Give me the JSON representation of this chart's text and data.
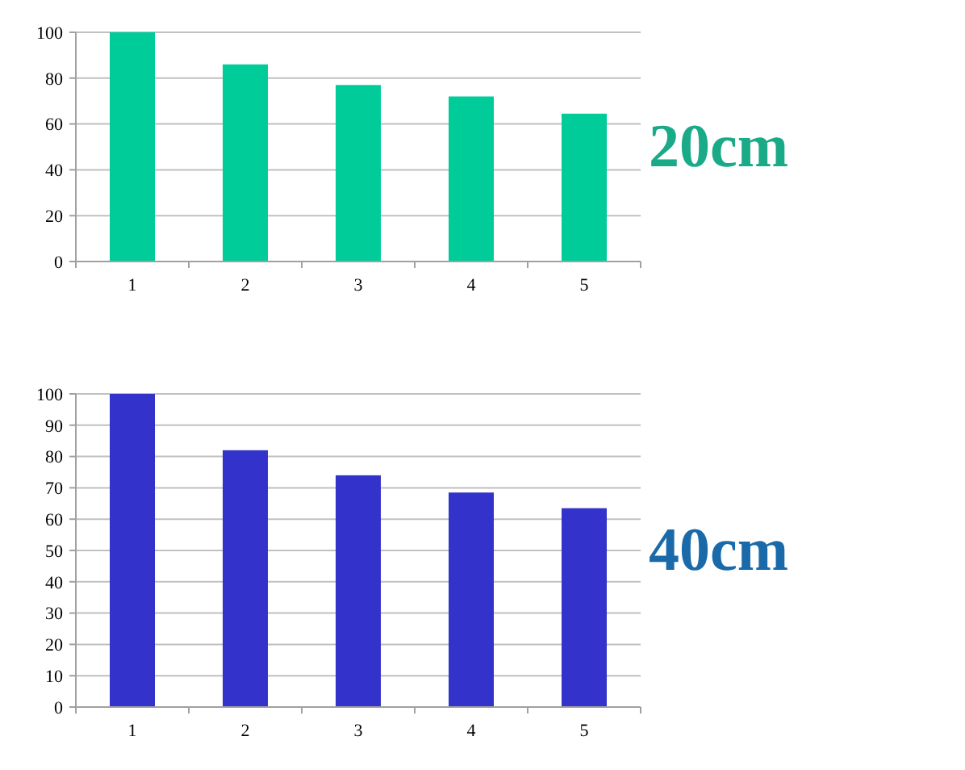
{
  "chart_data": [
    {
      "type": "bar",
      "title": "20cm",
      "categories": [
        "1",
        "2",
        "3",
        "4",
        "5"
      ],
      "values": [
        100,
        86,
        77,
        72,
        64.5
      ],
      "color": "#00cc99",
      "ylim": [
        0,
        100
      ],
      "yticks": [
        0,
        20,
        40,
        60,
        80,
        100
      ],
      "grid": "y"
    },
    {
      "type": "bar",
      "title": "40cm",
      "categories": [
        "1",
        "2",
        "3",
        "4",
        "5"
      ],
      "values": [
        100,
        82,
        74,
        68.5,
        63.5
      ],
      "color": "#3333cc",
      "ylim": [
        0,
        100
      ],
      "yticks": [
        0,
        10,
        20,
        30,
        40,
        50,
        60,
        70,
        80,
        90,
        100
      ],
      "grid": "y"
    }
  ]
}
